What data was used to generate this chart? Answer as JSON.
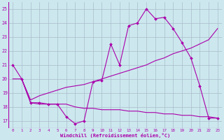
{
  "xlabel": "Windchill (Refroidissement éolien,°C)",
  "x_ticks": [
    0,
    1,
    2,
    3,
    4,
    5,
    6,
    7,
    8,
    9,
    10,
    11,
    12,
    13,
    14,
    15,
    16,
    17,
    18,
    19,
    20,
    21,
    22,
    23
  ],
  "ylim": [
    16.5,
    25.5
  ],
  "xlim": [
    -0.5,
    23.5
  ],
  "yticks": [
    17,
    18,
    19,
    20,
    21,
    22,
    23,
    24,
    25
  ],
  "background_color": "#cce8ee",
  "grid_color": "#aabbcc",
  "line_color": "#aa00aa",
  "line1_x": [
    0,
    1,
    2,
    3,
    4,
    5,
    6,
    7,
    8,
    9,
    10,
    11,
    12,
    13,
    14,
    15,
    16,
    17,
    18,
    19,
    20,
    21,
    22,
    23
  ],
  "line1_y": [
    21.0,
    20.0,
    18.3,
    18.3,
    18.2,
    18.2,
    17.3,
    16.8,
    17.0,
    19.8,
    19.9,
    22.5,
    21.0,
    23.8,
    24.0,
    25.0,
    24.3,
    24.4,
    23.6,
    22.6,
    21.5,
    19.5,
    17.2,
    17.2
  ],
  "line2_x": [
    1,
    2,
    3,
    4,
    5,
    6,
    7,
    8,
    9,
    10,
    11,
    12,
    13,
    14,
    15,
    16,
    17,
    18,
    19,
    20,
    21,
    22,
    23
  ],
  "line2_y": [
    20.0,
    18.5,
    18.8,
    19.0,
    19.2,
    19.4,
    19.5,
    19.6,
    19.8,
    20.0,
    20.2,
    20.4,
    20.6,
    20.8,
    21.0,
    21.3,
    21.5,
    21.8,
    22.0,
    22.2,
    22.5,
    22.8,
    23.6
  ],
  "line3_x": [
    0,
    1,
    2,
    3,
    4,
    5,
    6,
    7,
    8,
    9,
    10,
    11,
    12,
    13,
    14,
    15,
    16,
    17,
    18,
    19,
    20,
    21,
    22,
    23
  ],
  "line3_y": [
    20.0,
    20.0,
    18.3,
    18.2,
    18.2,
    18.2,
    18.2,
    18.0,
    17.9,
    17.9,
    17.8,
    17.8,
    17.8,
    17.7,
    17.7,
    17.6,
    17.6,
    17.5,
    17.5,
    17.4,
    17.4,
    17.3,
    17.3,
    17.2
  ]
}
